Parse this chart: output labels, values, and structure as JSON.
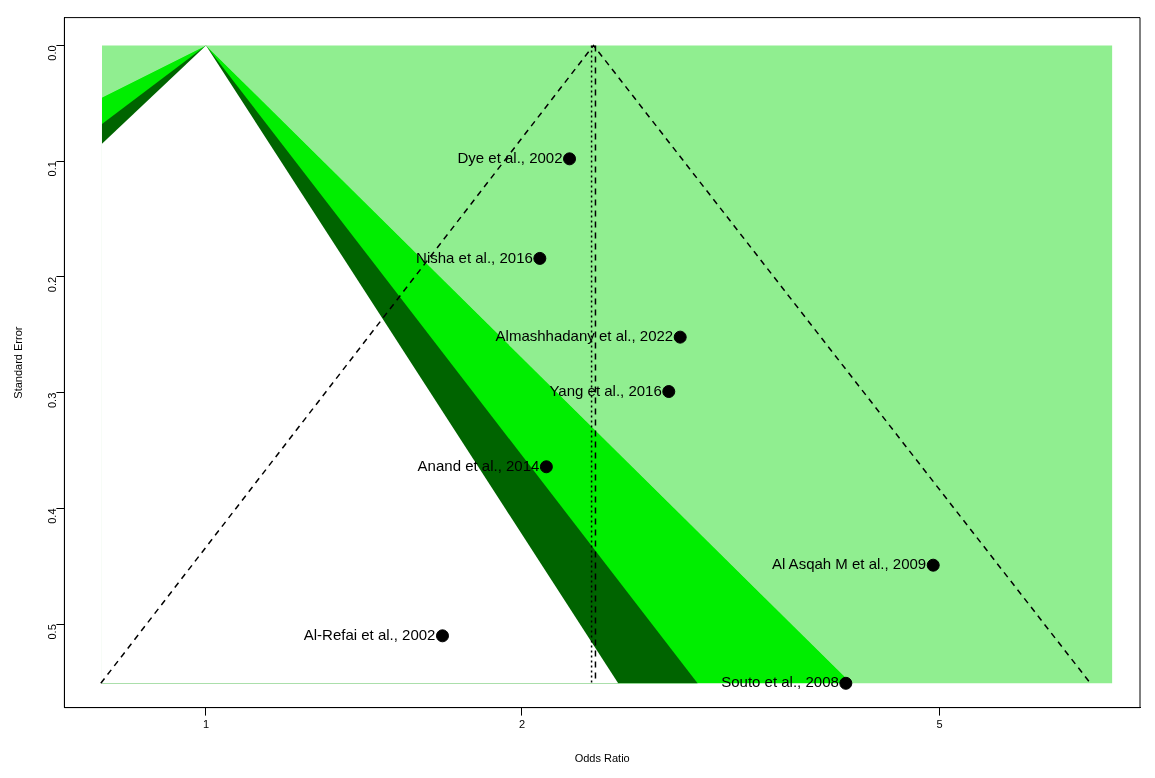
{
  "chart_data": {
    "type": "scatter",
    "xlabel": "Odds Ratio",
    "ylabel": "Standard Error",
    "log": "x",
    "grid": false,
    "legend": false,
    "xlim": [
      0.733,
      7.76
    ],
    "xticks": [
      1,
      2,
      5
    ],
    "ylim": [
      0.572,
      -0.024
    ],
    "yticks": [
      {
        "value": 0,
        "label": "0.0"
      },
      0.1,
      0.2,
      0.3,
      0.4,
      0.5
    ],
    "series": [
      {
        "type": "area",
        "color": "#90ee90",
        "x": [
          0.796,
          1,
          0.796
        ],
        "values": [
          0,
          0,
          0.045
        ]
      },
      {
        "type": "area",
        "color": "#90ee90",
        "x": [
          1,
          7.3,
          7.3,
          4.12
        ],
        "values": [
          0,
          0,
          0.551,
          0.551
        ]
      },
      {
        "type": "area",
        "color": "#00ee00",
        "x": [
          0.796,
          0.796,
          1,
          4.12
        ],
        "values": [
          0.551,
          0.045,
          0,
          0.551
        ]
      },
      {
        "type": "area",
        "color": "#006400",
        "x": [
          0.796,
          0.796,
          1,
          2.94
        ],
        "values": [
          0.551,
          0.068,
          0,
          0.551
        ]
      },
      {
        "type": "area",
        "color": "#ffffff",
        "x": [
          0.796,
          0.796,
          1,
          2.47
        ],
        "values": [
          0.551,
          0.085,
          0,
          0.551
        ]
      },
      {
        "type": "line",
        "color": "#000000",
        "line_style": "dashed",
        "marker": "none",
        "x": [
          0.794,
          2.34,
          6.96
        ],
        "values": [
          0.551,
          0,
          0.551
        ]
      },
      {
        "type": "line",
        "color": "#000000",
        "line_style": "dotted",
        "marker": "none",
        "x": [
          2.33,
          2.33
        ],
        "values": [
          0,
          0.551
        ]
      },
      {
        "type": "line",
        "color": "#000000",
        "line_style": "dashed",
        "marker": "none",
        "x": [
          2.35,
          2.35
        ],
        "values": [
          0,
          0.551
        ]
      },
      {
        "type": "scatter",
        "color": "#000000",
        "marker": "circle",
        "x": [
          2.22,
          2.08,
          2.83,
          2.76,
          2.11,
          4.93,
          1.68,
          4.07
        ],
        "values": [
          0.098,
          0.184,
          0.252,
          0.299,
          0.364,
          0.449,
          0.51,
          0.551
        ]
      }
    ],
    "annotations": [
      {
        "text": "Dye et al., 2002",
        "x": 2.22,
        "y": 0.098
      },
      {
        "text": "Nisha et al., 2016",
        "x": 2.08,
        "y": 0.184
      },
      {
        "text": "Almashhadany et al., 2022",
        "x": 2.83,
        "y": 0.252
      },
      {
        "text": "Yang et al., 2016",
        "x": 2.76,
        "y": 0.299
      },
      {
        "text": "Anand et al., 2014",
        "x": 2.11,
        "y": 0.364
      },
      {
        "text": "Al Asqah M et al., 2009",
        "x": 4.93,
        "y": 0.449
      },
      {
        "text": "Al-Refai et al., 2002",
        "x": 1.68,
        "y": 0.51
      },
      {
        "text": "Souto et al., 2008",
        "x": 4.07,
        "y": 0.551
      }
    ]
  }
}
